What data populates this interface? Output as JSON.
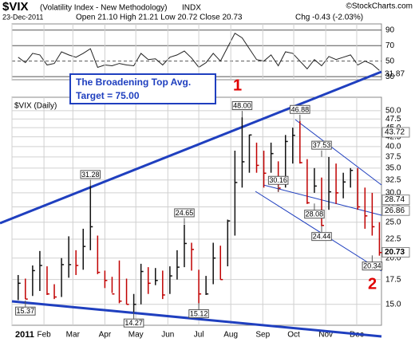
{
  "header": {
    "symbol": "$VIX",
    "name": "(Volatility Index - New Methodology)",
    "exchange": "INDX",
    "credit": "©StockCharts.com",
    "date": "23-Dec-2011",
    "quote": "Open 21.10  High 21.21  Low 20.72  Close 20.73",
    "change": "Chg -0.43 (-2.03%)"
  },
  "chart_data": [
    {
      "type": "line",
      "color": "#222222",
      "x": [
        7,
        14,
        21,
        28,
        35,
        42,
        49,
        56,
        63,
        70,
        77,
        84,
        91,
        98,
        105,
        112,
        119,
        126,
        133,
        140,
        147,
        154,
        161,
        168,
        175,
        182,
        189,
        196,
        203,
        210,
        217,
        224,
        231,
        238,
        245,
        252,
        259,
        266,
        273,
        280,
        287,
        294,
        301,
        308,
        315,
        322,
        329,
        336,
        343,
        350,
        357
      ],
      "values": [
        55,
        48,
        60,
        58,
        45,
        47,
        62,
        58,
        55,
        60,
        66,
        42,
        45,
        44,
        47,
        45,
        44,
        60,
        52,
        53,
        45,
        55,
        58,
        63,
        54,
        42,
        48,
        60,
        50,
        68,
        86,
        80,
        66,
        52,
        50,
        58,
        44,
        62,
        60,
        50,
        40,
        52,
        44,
        56,
        52,
        55,
        58,
        45,
        50,
        46,
        38
      ],
      "ylim": [
        26,
        98
      ],
      "yticks": [
        30,
        50,
        70,
        90
      ],
      "xlim": [
        1,
        359
      ]
    },
    {
      "type": "ohlc",
      "title": "$VIX (Daily)",
      "log": true,
      "ylim": [
        13.5,
        53.3
      ],
      "yticks": [
        {
          "value": 15,
          "label": "15.0"
        },
        17.5,
        {
          "value": 20,
          "label": "20.0"
        },
        22.5,
        {
          "value": 25,
          "label": "25.0"
        },
        27.5,
        {
          "value": 30,
          "label": "30.0"
        },
        32.5,
        {
          "value": 35,
          "label": "35.0"
        },
        37.5,
        {
          "value": 40,
          "label": "40.0"
        },
        42.5,
        {
          "value": 45,
          "label": "45.0"
        },
        47.5,
        {
          "value": 50,
          "label": "50.0"
        }
      ],
      "xlim": [
        1,
        359
      ],
      "xticks": [
        {
          "value": 1,
          "label": "2011"
        },
        {
          "value": 32,
          "label": "Feb"
        },
        {
          "value": 60,
          "label": "Mar"
        },
        {
          "value": 91,
          "label": "Apr"
        },
        {
          "value": 121,
          "label": "May"
        },
        {
          "value": 152,
          "label": "Jun"
        },
        {
          "value": 182,
          "label": "Jul"
        },
        {
          "value": 213,
          "label": "Aug"
        },
        {
          "value": 244,
          "label": "Sep"
        },
        {
          "value": 274,
          "label": "Oct"
        },
        {
          "value": 305,
          "label": "Nov"
        },
        {
          "value": 335,
          "label": "Dec"
        }
      ],
      "x": [
        7,
        14,
        21,
        28,
        35,
        42,
        49,
        56,
        63,
        70,
        77,
        84,
        91,
        98,
        105,
        112,
        119,
        126,
        133,
        140,
        147,
        154,
        161,
        168,
        175,
        182,
        189,
        196,
        203,
        210,
        217,
        224,
        231,
        238,
        245,
        252,
        259,
        266,
        273,
        280,
        287,
        294,
        301,
        308,
        315,
        322,
        329,
        336,
        343,
        350,
        357
      ],
      "high": [
        18.0,
        17.6,
        19.1,
        20.9,
        19.0,
        17.0,
        20.0,
        22.9,
        21.0,
        24.0,
        31.3,
        23.0,
        18.5,
        17.8,
        19.7,
        17.6,
        16.0,
        19.3,
        18.9,
        18.8,
        18.5,
        19.0,
        21.0,
        24.6,
        22.0,
        18.6,
        17.9,
        22.0,
        21.6,
        25.4,
        39.0,
        48.0,
        43.1,
        41.0,
        39.0,
        41.0,
        36.5,
        43.0,
        45.0,
        46.9,
        37.0,
        35.0,
        33.0,
        37.5,
        36.0,
        34.0,
        35.0,
        35.0,
        31.0,
        30.0,
        25.0
      ],
      "low": [
        15.4,
        15.5,
        15.8,
        16.3,
        15.9,
        15.5,
        15.7,
        17.7,
        18.0,
        18.6,
        21.0,
        18.1,
        16.6,
        16.1,
        15.1,
        15.0,
        14.3,
        15.0,
        16.0,
        16.9,
        15.5,
        16.0,
        17.5,
        18.9,
        18.5,
        15.1,
        15.9,
        17.0,
        17.5,
        19.0,
        23.0,
        31.0,
        34.0,
        34.0,
        31.0,
        34.0,
        30.2,
        31.0,
        36.0,
        36.0,
        28.0,
        30.0,
        24.4,
        27.0,
        28.0,
        29.0,
        31.0,
        27.0,
        24.0,
        23.0,
        20.3
      ],
      "close": [
        17.1,
        15.5,
        18.5,
        19.1,
        16.0,
        15.7,
        19.2,
        19.2,
        19.1,
        21.5,
        24.3,
        18.3,
        17.4,
        16.0,
        15.3,
        15.0,
        15.0,
        18.4,
        17.1,
        17.4,
        15.9,
        17.9,
        18.9,
        21.9,
        21.1,
        16.0,
        16.0,
        20.0,
        17.5,
        25.2,
        32.0,
        36.4,
        43.0,
        35.6,
        33.9,
        38.3,
        30.9,
        41.3,
        42.9,
        36.2,
        28.2,
        31.3,
        24.5,
        30.2,
        30.0,
        32.1,
        34.5,
        27.5,
        26.0,
        24.3,
        20.7
      ],
      "annotations": [
        {
          "x": 77,
          "y": 31.28,
          "label": "31.28"
        },
        {
          "x": 224,
          "y": 48.0,
          "label": "48.00"
        },
        {
          "x": 280,
          "y": 46.88,
          "label": "46.88"
        },
        {
          "x": 168,
          "y": 24.65,
          "label": "24.65"
        },
        {
          "x": 301,
          "y": 37.53,
          "label": "37.53"
        },
        {
          "x": 259,
          "y": 30.16,
          "label": "30.16"
        },
        {
          "x": 294,
          "y": 28.08,
          "label": "28.08"
        },
        {
          "x": 301,
          "y": 24.44,
          "label": "24.44"
        },
        {
          "x": 14,
          "y": 15.37,
          "label": "15.37"
        },
        {
          "x": 119,
          "y": 14.27,
          "label": "14.27"
        },
        {
          "x": 182,
          "y": 15.12,
          "label": "15.12"
        },
        {
          "x": 350,
          "y": 20.34,
          "label": "20.34"
        }
      ],
      "right_labels": [
        {
          "value": 43.72,
          "label": "43.72"
        },
        {
          "value": 28.74,
          "label": "28.74"
        },
        {
          "value": 26.86,
          "label": "26.86"
        },
        {
          "value": 20.73,
          "label": "20.73"
        }
      ]
    }
  ],
  "trend_label": "31.87",
  "note": {
    "line1": "The Broadening Top Avg.",
    "line2": "Target = 75.00"
  },
  "wave1": "1",
  "wave2": "2"
}
